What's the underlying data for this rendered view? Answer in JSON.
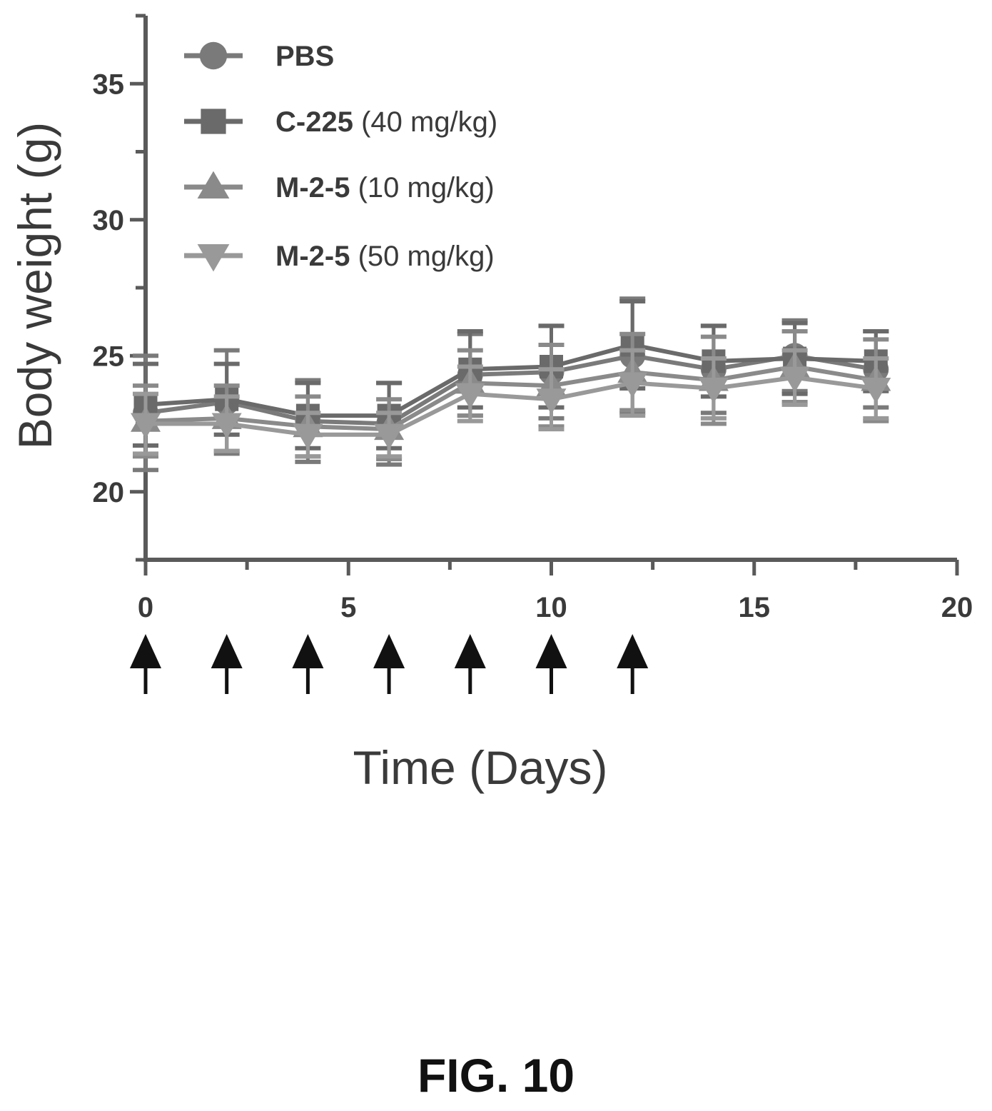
{
  "figure_label": "FIG. 10",
  "chart_data": {
    "type": "line",
    "xlabel": "Time (Days)",
    "ylabel": "Body weight (g)",
    "xlim": [
      0,
      20
    ],
    "ylim": [
      17.5,
      37.5
    ],
    "xticks": [
      "0",
      "5",
      "10",
      "15",
      "20"
    ],
    "yticks": [
      "20",
      "25",
      "30",
      "35"
    ],
    "grid": false,
    "legend_position": "top-left",
    "x": [
      0,
      2,
      4,
      6,
      8,
      10,
      12,
      14,
      16,
      18
    ],
    "series": [
      {
        "name": "PBS",
        "dose": "",
        "marker": "circle",
        "color": "#7a7a7a",
        "values": [
          22.9,
          23.3,
          22.6,
          22.5,
          24.3,
          24.4,
          25.0,
          24.5,
          25.0,
          24.5
        ],
        "error": [
          2.1,
          1.9,
          1.5,
          1.5,
          1.5,
          1.7,
          2.1,
          1.6,
          1.3,
          1.4
        ]
      },
      {
        "name": "C-225",
        "dose": "(40 mg/kg)",
        "marker": "square",
        "color": "#6a6a6a",
        "values": [
          23.2,
          23.4,
          22.8,
          22.8,
          24.5,
          24.6,
          25.4,
          24.8,
          24.9,
          24.8
        ],
        "error": [
          1.5,
          1.3,
          1.2,
          1.2,
          1.4,
          1.5,
          1.6,
          1.3,
          1.3,
          1.1
        ]
      },
      {
        "name": "M-2-5",
        "dose": "(10 mg/kg)",
        "marker": "triangle-up",
        "color": "#8a8a8a",
        "values": [
          22.6,
          22.7,
          22.4,
          22.3,
          24.0,
          23.9,
          24.4,
          24.1,
          24.6,
          24.1
        ],
        "error": [
          1.3,
          1.2,
          1.1,
          1.1,
          1.2,
          1.5,
          1.4,
          1.6,
          1.3,
          1.5
        ]
      },
      {
        "name": "M-2-5",
        "dose": "(50 mg/kg)",
        "marker": "triangle-down",
        "color": "#999999",
        "values": [
          22.5,
          22.5,
          22.1,
          22.1,
          23.6,
          23.4,
          24.0,
          23.8,
          24.2,
          23.8
        ],
        "error": [
          1.1,
          1.0,
          0.8,
          0.8,
          1.0,
          1.1,
          1.2,
          1.1,
          1.0,
          1.1
        ]
      }
    ],
    "dosing_days": [
      0,
      2,
      4,
      6,
      8,
      10,
      12
    ]
  }
}
